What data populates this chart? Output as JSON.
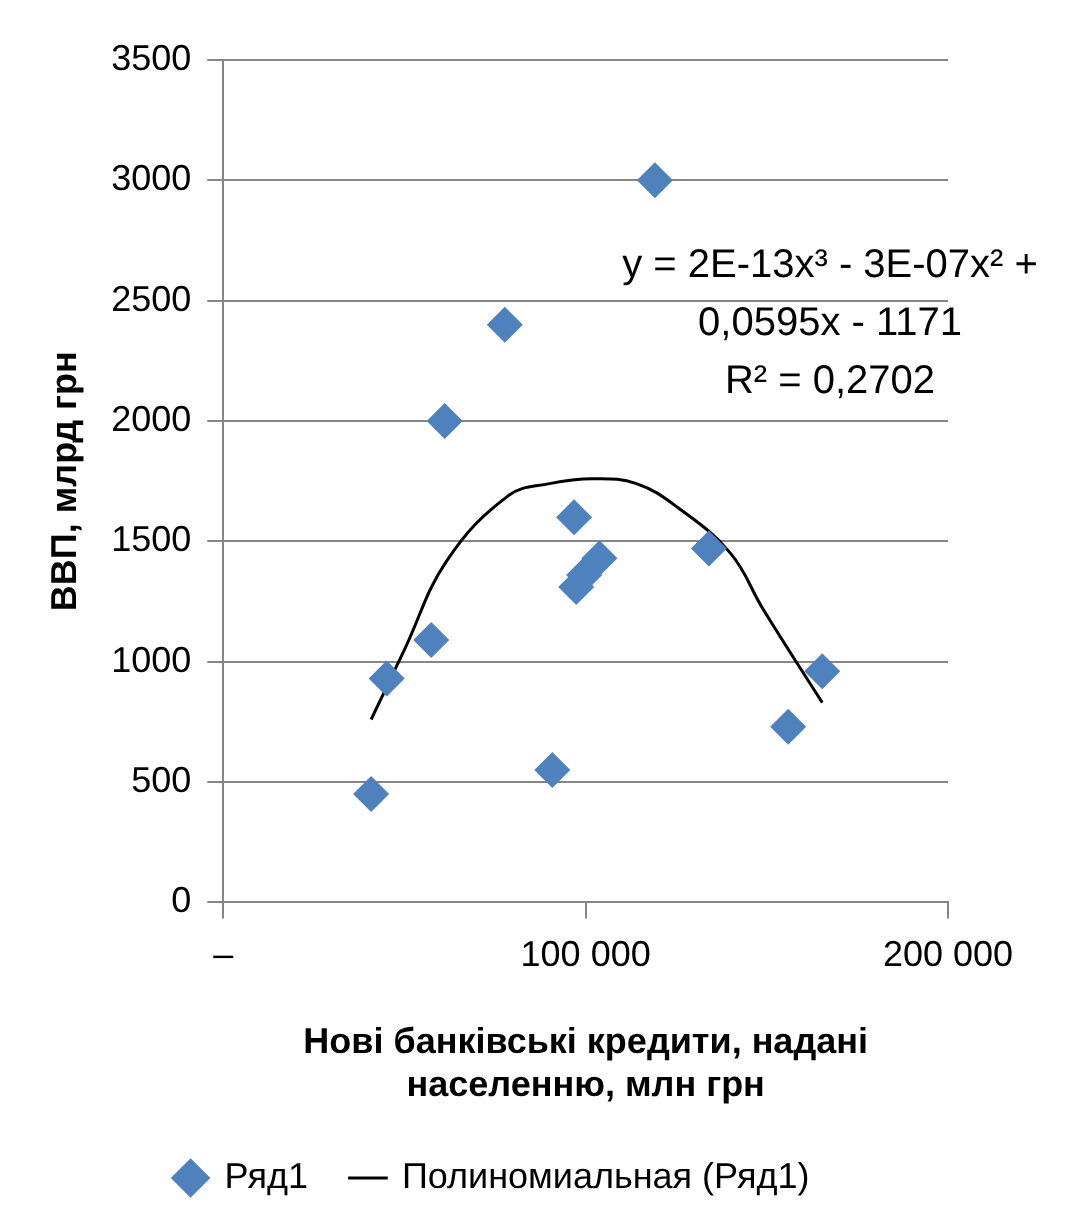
{
  "chart_data": {
    "type": "scatter",
    "xlabel": "Нові банківські кредити, надані населенню, млн грн",
    "ylabel": "ВВП, млрд грн",
    "xlim": [
      0,
      200000
    ],
    "xticks": [
      {
        "value": 0,
        "label": "–"
      },
      {
        "value": 100000,
        "label": "100 000"
      },
      {
        "value": 200000,
        "label": "200 000"
      }
    ],
    "ylim": [
      0,
      3500
    ],
    "yticks": [
      0,
      500,
      1000,
      1500,
      2000,
      2500,
      3000,
      3500
    ],
    "grid": "y",
    "legend": "bottom",
    "annotations": [
      "y = 2E-13x³ - 3E-07x² + 0,0595x - 1171",
      "R² = 0,2702"
    ],
    "series": [
      {
        "name": "Ряд1",
        "color": "#4f81bd",
        "marker": "diamond",
        "x": [
          40800,
          45100,
          57400,
          61100,
          77700,
          90800,
          96800,
          97400,
          99600,
          103800,
          119100,
          134000,
          155900,
          165300
        ],
        "values": [
          450,
          930,
          1090,
          2000,
          2400,
          550,
          1600,
          1310,
          1360,
          1430,
          3000,
          1470,
          730,
          960
        ]
      },
      {
        "type": "line",
        "name": "Полиномиальная (Ряд1)",
        "color": "#000000",
        "marker": "none",
        "x": [
          40800,
          50000,
          61700,
          78700,
          90000,
          102000,
          114000,
          125500,
          140000,
          148900,
          165300
        ],
        "values": [
          760,
          1050,
          1420,
          1690,
          1740,
          1760,
          1740,
          1640,
          1450,
          1220,
          830
        ]
      }
    ]
  }
}
